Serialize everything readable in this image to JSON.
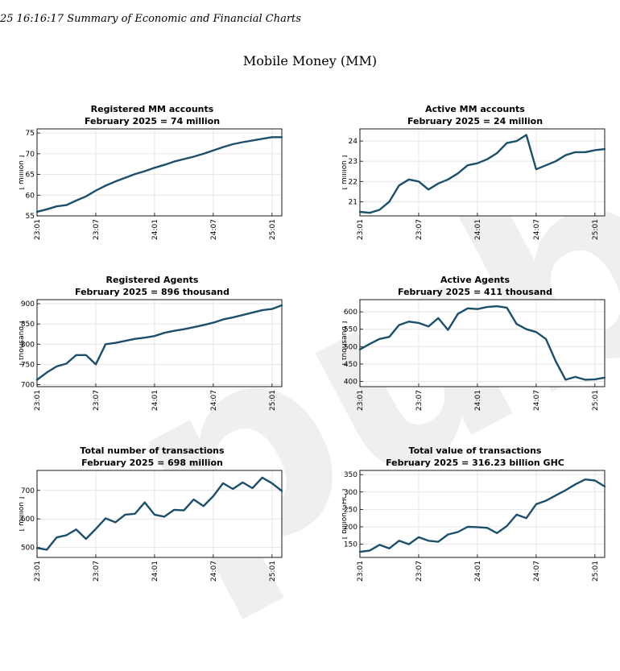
{
  "header": {
    "text": "25 16:16:17 Summary of Economic and Financial Charts"
  },
  "page_title": "Mobile Money (MM)",
  "watermark": "public",
  "colors": {
    "line": "#1b4f6b",
    "grid": "#e6e6e6",
    "axis": "#000000"
  },
  "charts": [
    {
      "title": "Registered MM accounts",
      "subtitle": "February 2025 = 74 million"
    },
    {
      "title": "Active MM accounts",
      "subtitle": "February 2025 = 24 million"
    },
    {
      "title": "Registered Agents",
      "subtitle": "February 2025 = 896 thousand"
    },
    {
      "title": "Active Agents",
      "subtitle": "February 2025 = 411 thousand"
    },
    {
      "title": "Total number of transactions",
      "subtitle": "February 2025 = 698 million"
    },
    {
      "title": "Total value of transactions",
      "subtitle": "February 2025 = 316.23 billion GHC"
    }
  ],
  "chart_data": [
    {
      "type": "line",
      "title": "Registered MM accounts",
      "subtitle": "February 2025 = 74 million",
      "xlabel": "",
      "ylabel": "[ million ]",
      "x": [
        "23:01",
        "23:02",
        "23:03",
        "23:04",
        "23:05",
        "23:06",
        "23:07",
        "23:08",
        "23:09",
        "23:10",
        "23:11",
        "23:12",
        "24:01",
        "24:02",
        "24:03",
        "24:04",
        "24:05",
        "24:06",
        "24:07",
        "24:08",
        "24:09",
        "24:10",
        "24:11",
        "24:12",
        "25:01",
        "25:02"
      ],
      "x_ticks": [
        "23:01",
        "23:07",
        "24:01",
        "24:07",
        "25:01"
      ],
      "y": [
        56,
        56.6,
        57.3,
        57.6,
        58.7,
        59.7,
        61.1,
        62.3,
        63.3,
        64.2,
        65.1,
        65.8,
        66.6,
        67.3,
        68.1,
        68.7,
        69.3,
        70.0,
        70.8,
        71.6,
        72.3,
        72.8,
        73.2,
        73.6,
        74.0,
        74.0
      ],
      "ylim": [
        55,
        76
      ],
      "y_ticks": [
        55,
        60,
        65,
        70,
        75
      ],
      "grid": true
    },
    {
      "type": "line",
      "title": "Active MM accounts",
      "subtitle": "February 2025 = 24 million",
      "xlabel": "",
      "ylabel": "[ million ]",
      "x": [
        "23:01",
        "23:02",
        "23:03",
        "23:04",
        "23:05",
        "23:06",
        "23:07",
        "23:08",
        "23:09",
        "23:10",
        "23:11",
        "23:12",
        "24:01",
        "24:02",
        "24:03",
        "24:04",
        "24:05",
        "24:06",
        "24:07",
        "24:08",
        "24:09",
        "24:10",
        "24:11",
        "24:12",
        "25:01",
        "25:02"
      ],
      "x_ticks": [
        "23:01",
        "23:07",
        "24:01",
        "24:07",
        "25:01"
      ],
      "y": [
        20.5,
        20.45,
        20.6,
        21.0,
        21.8,
        22.1,
        22.0,
        21.6,
        21.9,
        22.1,
        22.4,
        22.8,
        22.9,
        23.1,
        23.4,
        23.9,
        24.0,
        24.3,
        22.6,
        22.8,
        23.0,
        23.3,
        23.45,
        23.45,
        23.55,
        23.6
      ],
      "ylim": [
        20.3,
        24.6
      ],
      "y_ticks": [
        21,
        22,
        23,
        24
      ],
      "grid": true
    },
    {
      "type": "line",
      "title": "Registered Agents",
      "subtitle": "February 2025 = 896 thousand",
      "xlabel": "",
      "ylabel": "[ thousand ]",
      "x": [
        "23:01",
        "23:02",
        "23:03",
        "23:04",
        "23:05",
        "23:06",
        "23:07",
        "23:08",
        "23:09",
        "23:10",
        "23:11",
        "23:12",
        "24:01",
        "24:02",
        "24:03",
        "24:04",
        "24:05",
        "24:06",
        "24:07",
        "24:08",
        "24:09",
        "24:10",
        "24:11",
        "24:12",
        "25:01",
        "25:02"
      ],
      "x_ticks": [
        "23:01",
        "23:07",
        "24:01",
        "24:07",
        "25:01"
      ],
      "y": [
        712,
        730,
        745,
        752,
        773,
        773,
        750,
        800,
        803,
        808,
        813,
        816,
        820,
        828,
        833,
        837,
        842,
        847,
        853,
        861,
        866,
        872,
        878,
        884,
        887,
        896
      ],
      "ylim": [
        695,
        910
      ],
      "y_ticks": [
        700,
        750,
        800,
        850,
        900
      ],
      "grid": true
    },
    {
      "type": "line",
      "title": "Active Agents",
      "subtitle": "February 2025 = 411 thousand",
      "xlabel": "",
      "ylabel": "[ thousand ]",
      "x": [
        "23:01",
        "23:02",
        "23:03",
        "23:04",
        "23:05",
        "23:06",
        "23:07",
        "23:08",
        "23:09",
        "23:10",
        "23:11",
        "23:12",
        "24:01",
        "24:02",
        "24:03",
        "24:04",
        "24:05",
        "24:06",
        "24:07",
        "24:08",
        "24:09",
        "24:10",
        "24:11",
        "24:12",
        "25:01",
        "25:02"
      ],
      "x_ticks": [
        "23:01",
        "23:07",
        "24:01",
        "24:07",
        "25:01"
      ],
      "y": [
        492,
        508,
        522,
        528,
        562,
        572,
        568,
        558,
        582,
        548,
        594,
        610,
        608,
        614,
        616,
        612,
        565,
        550,
        542,
        522,
        458,
        405,
        413,
        405,
        406,
        411
      ],
      "ylim": [
        385,
        635
      ],
      "y_ticks": [
        400,
        450,
        500,
        550,
        600
      ],
      "grid": true
    },
    {
      "type": "line",
      "title": "Total number of transactions",
      "subtitle": "February 2025 = 698 million",
      "xlabel": "",
      "ylabel": "[ million ]",
      "x": [
        "23:01",
        "23:02",
        "23:03",
        "23:04",
        "23:05",
        "23:06",
        "23:07",
        "23:08",
        "23:09",
        "23:10",
        "23:11",
        "23:12",
        "24:01",
        "24:02",
        "24:03",
        "24:04",
        "24:05",
        "24:06",
        "24:07",
        "24:08",
        "24:09",
        "24:10",
        "24:11",
        "24:12",
        "25:01",
        "25:02"
      ],
      "x_ticks": [
        "23:01",
        "23:07",
        "24:01",
        "24:07",
        "25:01"
      ],
      "y": [
        498,
        492,
        535,
        543,
        563,
        530,
        565,
        602,
        588,
        615,
        618,
        658,
        615,
        608,
        632,
        630,
        668,
        645,
        680,
        725,
        705,
        728,
        708,
        745,
        725,
        698
      ],
      "ylim": [
        465,
        770
      ],
      "y_ticks": [
        500,
        600,
        700
      ],
      "grid": true
    },
    {
      "type": "line",
      "title": "Total value of transactions",
      "subtitle": "February 2025 = 316.23 billion GHC",
      "xlabel": "",
      "ylabel": "[ billion GHC ]",
      "x": [
        "23:01",
        "23:02",
        "23:03",
        "23:04",
        "23:05",
        "23:06",
        "23:07",
        "23:08",
        "23:09",
        "23:10",
        "23:11",
        "23:12",
        "24:01",
        "24:02",
        "24:03",
        "24:04",
        "24:05",
        "24:06",
        "24:07",
        "24:08",
        "24:09",
        "24:10",
        "24:11",
        "24:12",
        "25:01",
        "25:02"
      ],
      "x_ticks": [
        "23:01",
        "23:07",
        "24:01",
        "24:07",
        "25:01"
      ],
      "y": [
        128,
        132,
        148,
        138,
        160,
        150,
        170,
        160,
        157,
        178,
        185,
        200,
        199,
        197,
        182,
        202,
        235,
        225,
        265,
        275,
        290,
        305,
        322,
        336,
        333,
        316
      ],
      "ylim": [
        112,
        362
      ],
      "y_ticks": [
        150,
        200,
        250,
        300,
        350
      ],
      "grid": true
    }
  ]
}
